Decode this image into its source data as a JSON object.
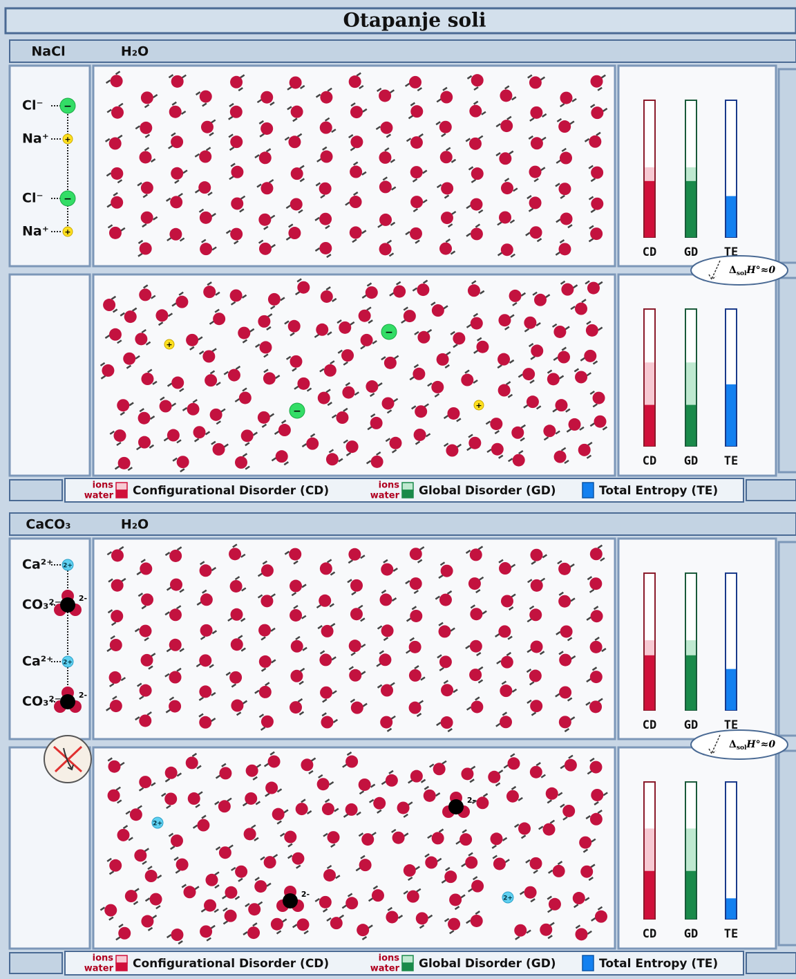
{
  "title": "Otapanje soli",
  "legend": {
    "ions": "ions",
    "water": "water",
    "cd": "Configurational Disorder (CD)",
    "gd": "Global Disorder (GD)",
    "te": "Total Entropy (TE)"
  },
  "panels": [
    {
      "salt": "NaCl",
      "solvent": "H₂O",
      "lattice": [
        {
          "label": "Cl⁻",
          "charge": "−"
        },
        {
          "label": "Na⁺",
          "charge": "+"
        },
        {
          "label": "Cl⁻",
          "charge": "−"
        },
        {
          "label": "Na⁺",
          "charge": "+"
        }
      ],
      "enthalpy": {
        "symbol": "Δ",
        "sub": "sol",
        "rest": "H°≈0"
      },
      "rows": [
        {
          "bars": [
            {
              "label": "CD",
              "ions": 51,
              "water": 41
            },
            {
              "label": "GD",
              "ions": 51,
              "water": 41
            },
            {
              "label": "TE",
              "total": 30
            }
          ]
        },
        {
          "bars": [
            {
              "label": "CD",
              "ions": 61,
              "water": 30
            },
            {
              "label": "GD",
              "ions": 61,
              "water": 30
            },
            {
              "label": "TE",
              "total": 45
            }
          ]
        }
      ]
    },
    {
      "salt": "CaCO₃",
      "solvent": "H₂O",
      "lattice": [
        {
          "label": "Ca²⁺",
          "charge": "2+"
        },
        {
          "label": "CO₃²⁻",
          "charge": "2-"
        },
        {
          "label": "Ca²⁺",
          "charge": "2+"
        },
        {
          "label": "CO₃²⁻",
          "charge": "2-"
        }
      ],
      "enthalpy": {
        "symbol": "Δ",
        "sub": "sol",
        "rest": "H°≈0"
      },
      "rows": [
        {
          "bars": [
            {
              "label": "CD",
              "ions": 51,
              "water": 40
            },
            {
              "label": "GD",
              "ions": 51,
              "water": 40
            },
            {
              "label": "TE",
              "total": 30
            }
          ]
        },
        {
          "bars": [
            {
              "label": "CD",
              "ions": 66,
              "water": 35
            },
            {
              "label": "GD",
              "ions": 66,
              "water": 35
            },
            {
              "label": "TE",
              "total": 15
            }
          ]
        }
      ]
    }
  ]
}
